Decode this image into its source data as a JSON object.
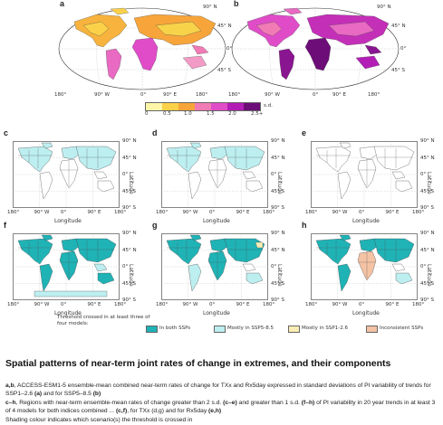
{
  "panels": {
    "a": "a",
    "b": "b",
    "c": "c",
    "d": "d",
    "e": "e",
    "f": "f",
    "g": "g",
    "h": "h"
  },
  "ticks": {
    "lat": [
      "90° N",
      "45° N",
      "0°",
      "45° S",
      "90° S"
    ],
    "lon": [
      "180°",
      "90° W",
      "0°",
      "90° E",
      "180°"
    ],
    "robin_lat": [
      "90° N",
      "45° N",
      "0°",
      "45° S"
    ],
    "robin_lon": [
      "180°",
      "90° W",
      "0°",
      "90° E",
      "180°"
    ]
  },
  "axes": {
    "xlabel": "Longitude",
    "ylabel": "Latitude"
  },
  "colorbar": {
    "ticks": [
      "0",
      "0.5",
      "1.0",
      "1.5",
      "2.0",
      "2.5+"
    ],
    "unit": "s.d.",
    "colors": [
      "#fdf6a8",
      "#fbd14a",
      "#f7a53a",
      "#f17bb4",
      "#e04cc8",
      "#b21db5",
      "#6d0d78"
    ]
  },
  "legend": {
    "heading": "Threshold crossed in at least three of four models:",
    "items": [
      {
        "label": "In both SSPs",
        "color": "#1fb3b6"
      },
      {
        "label": "Mostly in SSP5-8.5",
        "color": "#bdeef0"
      },
      {
        "label": "Mostly in SSP1-2.6",
        "color": "#fbedb3"
      },
      {
        "label": "Inconsistent SSPs",
        "color": "#f3c3a4"
      }
    ]
  },
  "caption": {
    "title": "Spatial patterns of near-term joint rates of change in extremes, and their components",
    "ab_prefix": "a,b",
    "ab_text": ", ACCESS-ESM1-5 ensemble-mean combined near-term rates of change for TXx and Rx5day expressed in standard deviations of PI variability of trends for SSP1–2.6 ",
    "ab_a": "(a)",
    "ab_mid": " and for SSP5–8.5 ",
    "ab_b": "(b)",
    "ch_prefix": "c–h",
    "ch_text1": ", Regions with near-term ensemble-mean rates of change greater than 2 s.d. ",
    "ch_ce": "(c–e)",
    "ch_text2": " and greater than 1 s.d. ",
    "ch_fh": "(f–h)",
    "ch_text3": " of PI variability in 20 year trends in at least 3 of 4 models for both indices combined ... ",
    "ch_cf": "(c,f)",
    "ch_text4": ", for TXx (d,g) and for Rx5day ",
    "ch_eh": "(e,h)",
    "shading": "Shading colour indicates which scenario(s) the threshold is crossed in"
  }
}
